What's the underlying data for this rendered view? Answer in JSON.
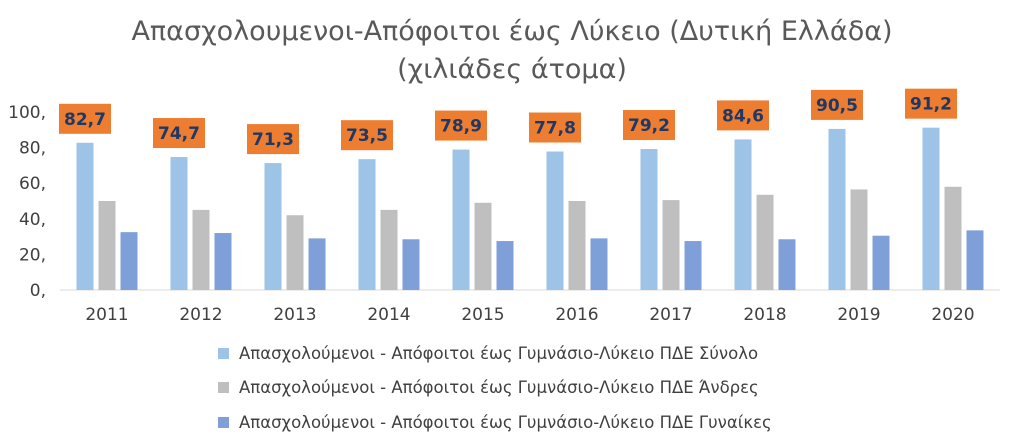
{
  "chart_data": {
    "type": "bar",
    "title": "Απασχολουμενοι-Απόφοιτοι έως Λύκειο (Δυτική Ελλάδα)",
    "subtitle": "(χιλιάδες άτομα)",
    "categories": [
      "2011",
      "2012",
      "2013",
      "2014",
      "2015",
      "2016",
      "2017",
      "2018",
      "2019",
      "2020"
    ],
    "ylim": [
      0,
      100
    ],
    "yticks": [
      "0,",
      "20,",
      "40,",
      "60,",
      "80,",
      "100,"
    ],
    "ytick_values": [
      0,
      20,
      40,
      60,
      80,
      100
    ],
    "series": [
      {
        "name": "Απασχολούμενοι - Απόφοιτοι έως Γυμνάσιο-Λύκειο ΠΔΕ Σύνολο",
        "color": "#9dc3e6",
        "values": [
          82.7,
          74.7,
          71.3,
          73.5,
          78.9,
          77.8,
          79.2,
          84.6,
          90.5,
          91.2
        ],
        "labels": [
          "82,7",
          "74,7",
          "71,3",
          "73,5",
          "78,9",
          "77,8",
          "79,2",
          "84,6",
          "90,5",
          "91,2"
        ]
      },
      {
        "name": "Απασχολούμενοι - Απόφοιτοι έως Γυμνάσιο-Λύκειο ΠΔΕ Άνδρες",
        "color": "#bfbfbf",
        "values": [
          50.0,
          45.0,
          42.0,
          45.0,
          49.0,
          50.0,
          50.5,
          53.5,
          56.5,
          58.0
        ]
      },
      {
        "name": "Απασχολούμενοι - Απόφοιτοι έως Γυμνάσιο-Λύκειο ΠΔΕ Γυναίκες",
        "color": "#7f9fd9",
        "values": [
          32.5,
          32.0,
          29.0,
          28.5,
          27.5,
          29.0,
          27.5,
          28.5,
          30.5,
          33.5
        ]
      }
    ],
    "label_box_color": "#ed7d31",
    "grid": false,
    "legend_position": "bottom"
  }
}
